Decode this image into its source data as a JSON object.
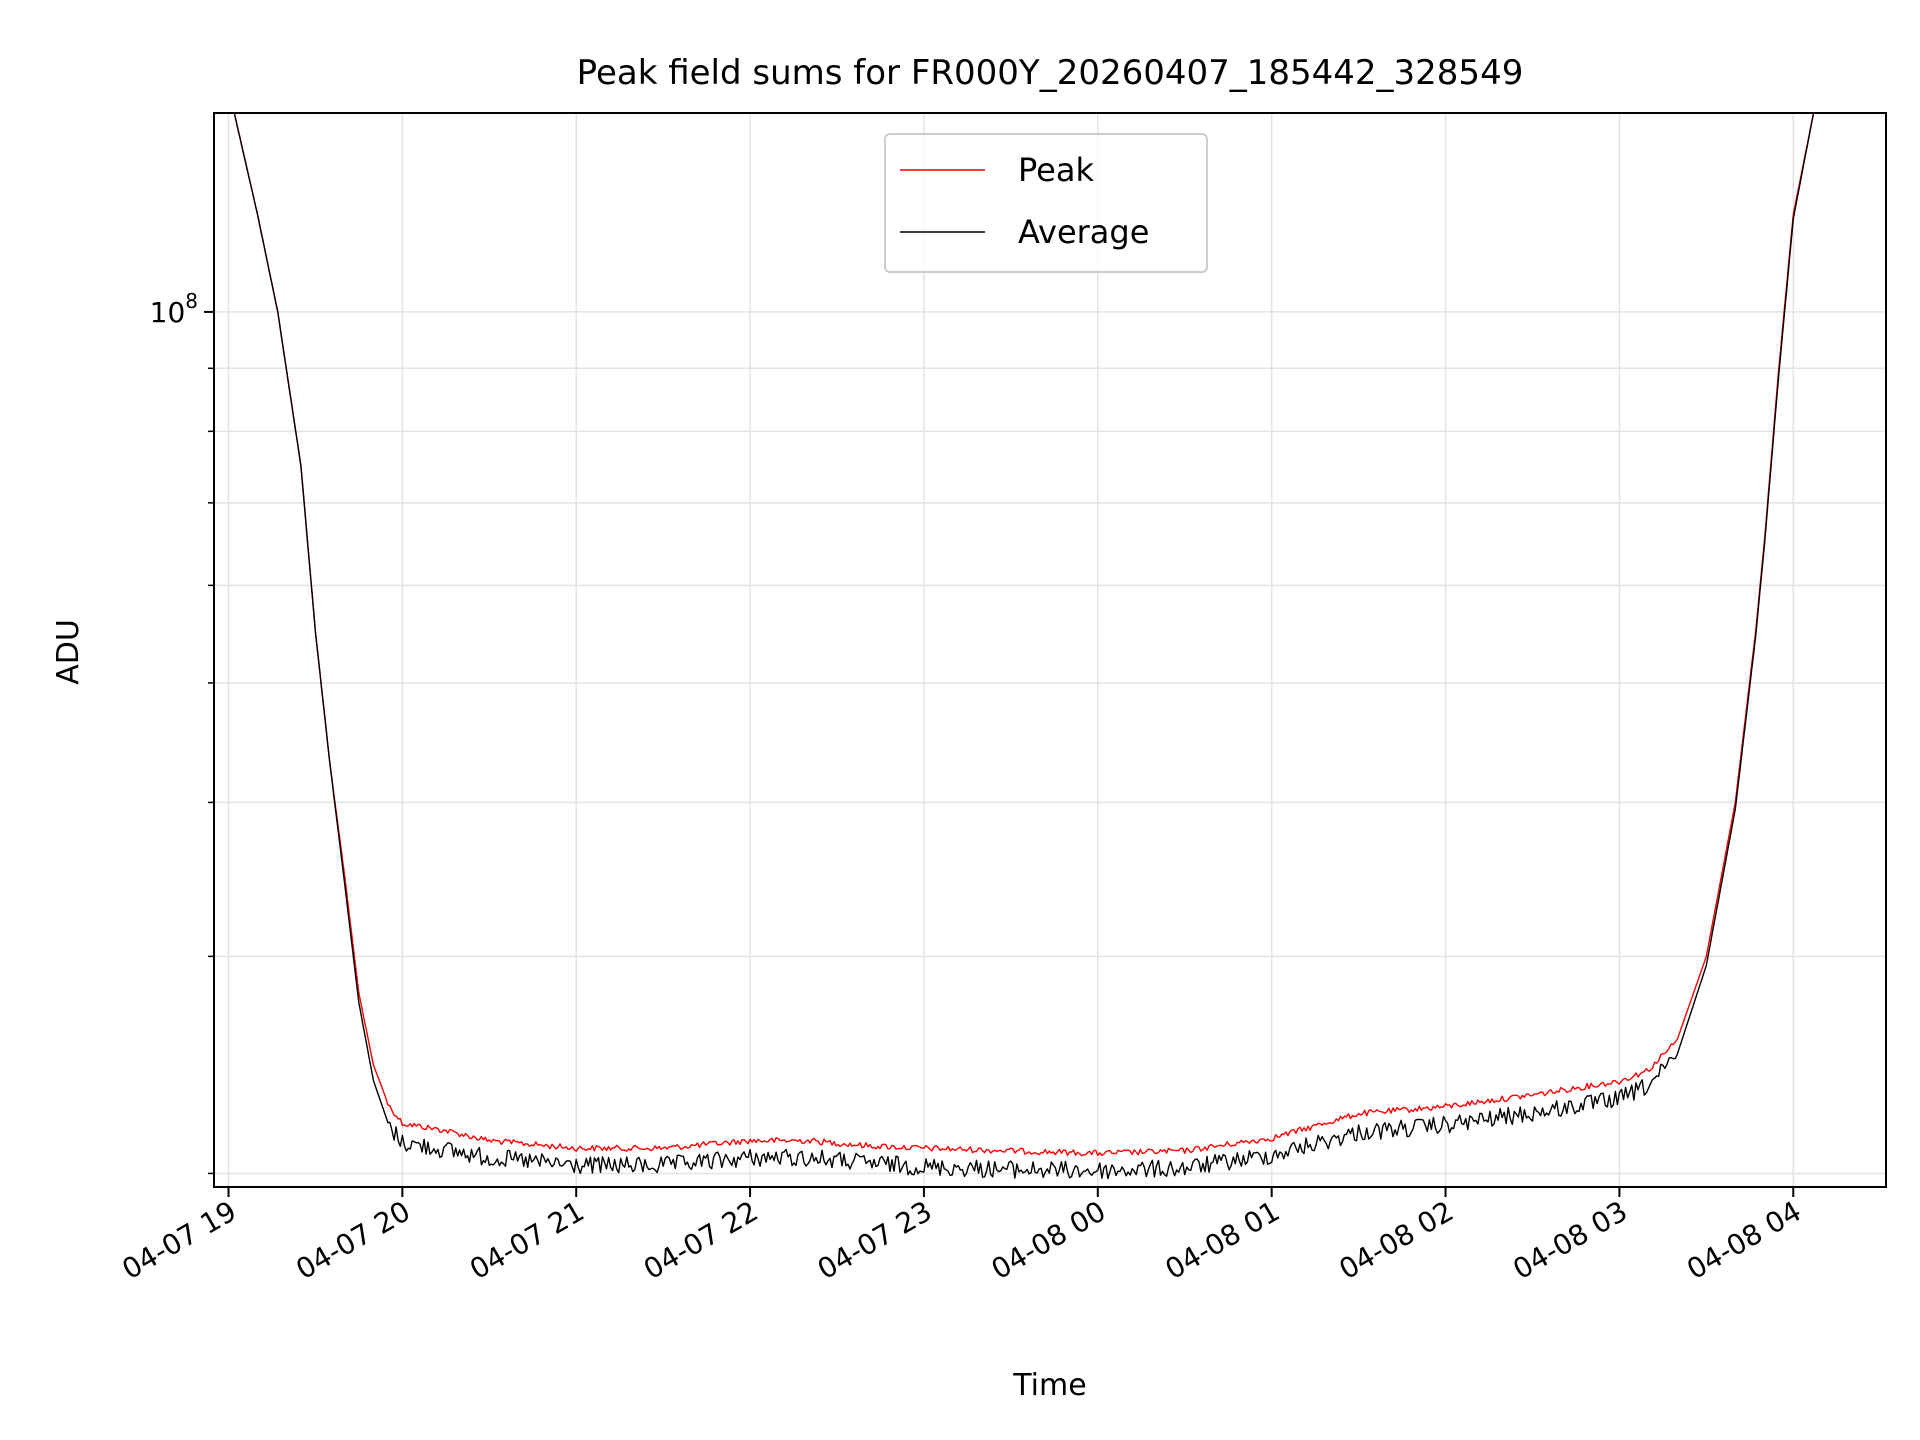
{
  "chart_data": {
    "type": "line",
    "title": "Peak field sums for FR000Y_20260407_185442_328549",
    "xlabel": "Time",
    "ylabel": "ADU",
    "y_scale": "log",
    "ylim": [
      19500000,
      145000000
    ],
    "xlim": [
      "2026-04-07 18:55",
      "2026-04-08 04:32"
    ],
    "grid": true,
    "legend": {
      "placement": "upper-center",
      "entries": [
        {
          "label": "Peak",
          "color": "#ff0000"
        },
        {
          "label": "Average",
          "color": "#000000"
        }
      ]
    },
    "x_ticks": [
      {
        "label": "04-07 19",
        "time": "2026-04-07 19:00"
      },
      {
        "label": "04-07 20",
        "time": "2026-04-07 20:00"
      },
      {
        "label": "04-07 21",
        "time": "2026-04-07 21:00"
      },
      {
        "label": "04-07 22",
        "time": "2026-04-07 22:00"
      },
      {
        "label": "04-07 23",
        "time": "2026-04-07 23:00"
      },
      {
        "label": "04-08 00",
        "time": "2026-04-08 00:00"
      },
      {
        "label": "04-08 01",
        "time": "2026-04-08 01:00"
      },
      {
        "label": "04-08 02",
        "time": "2026-04-08 02:00"
      },
      {
        "label": "04-08 03",
        "time": "2026-04-08 03:00"
      },
      {
        "label": "04-08 04",
        "time": "2026-04-08 04:00"
      }
    ],
    "y_major_tick": {
      "value": 100000000,
      "label_base": "10",
      "label_exp": "8"
    },
    "y_minor_ticks": [
      20000000,
      30000000,
      40000000,
      50000000,
      60000000,
      70000000,
      80000000,
      90000000
    ],
    "series": [
      {
        "name": "Peak",
        "color": "#ff0000",
        "points": [
          [
            "2026-04-07 18:55",
            145000000
          ],
          [
            "2026-04-07 19:02",
            145000000
          ],
          [
            "2026-04-07 19:10",
            120000000
          ],
          [
            "2026-04-07 19:17",
            100000000
          ],
          [
            "2026-04-07 19:25",
            75000000
          ],
          [
            "2026-04-07 19:30",
            55000000
          ],
          [
            "2026-04-07 19:35",
            43000000
          ],
          [
            "2026-04-07 19:40",
            35000000
          ],
          [
            "2026-04-07 19:45",
            28000000
          ],
          [
            "2026-04-07 19:50",
            24500000
          ],
          [
            "2026-04-07 19:55",
            22800000
          ],
          [
            "2026-04-07 20:00",
            22000000
          ],
          [
            "2026-04-07 20:15",
            21700000
          ],
          [
            "2026-04-07 20:30",
            21300000
          ],
          [
            "2026-04-07 21:00",
            21000000
          ],
          [
            "2026-04-07 21:30",
            21000000
          ],
          [
            "2026-04-07 22:00",
            21300000
          ],
          [
            "2026-04-07 22:20",
            21300000
          ],
          [
            "2026-04-07 22:40",
            21100000
          ],
          [
            "2026-04-07 23:00",
            21000000
          ],
          [
            "2026-04-07 23:30",
            20900000
          ],
          [
            "2026-04-08 00:00",
            20800000
          ],
          [
            "2026-04-08 00:30",
            20900000
          ],
          [
            "2026-04-08 01:00",
            21400000
          ],
          [
            "2026-04-08 01:30",
            22400000
          ],
          [
            "2026-04-08 02:00",
            22700000
          ],
          [
            "2026-04-08 02:30",
            23200000
          ],
          [
            "2026-04-08 03:00",
            23800000
          ],
          [
            "2026-04-08 03:10",
            24300000
          ],
          [
            "2026-04-08 03:20",
            25700000
          ],
          [
            "2026-04-08 03:30",
            30000000
          ],
          [
            "2026-04-08 03:40",
            40000000
          ],
          [
            "2026-04-08 03:47",
            55000000
          ],
          [
            "2026-04-08 03:50",
            65000000
          ],
          [
            "2026-04-08 03:55",
            90000000
          ],
          [
            "2026-04-08 04:00",
            120000000
          ],
          [
            "2026-04-08 04:07",
            145000000
          ],
          [
            "2026-04-08 04:32",
            145000000
          ]
        ]
      },
      {
        "name": "Average",
        "color": "#000000",
        "points": [
          [
            "2026-04-07 18:55",
            145000000
          ],
          [
            "2026-04-07 19:02",
            145000000
          ],
          [
            "2026-04-07 19:10",
            120000000
          ],
          [
            "2026-04-07 19:17",
            100000000
          ],
          [
            "2026-04-07 19:25",
            75000000
          ],
          [
            "2026-04-07 19:30",
            55000000
          ],
          [
            "2026-04-07 19:35",
            43000000
          ],
          [
            "2026-04-07 19:40",
            34500000
          ],
          [
            "2026-04-07 19:45",
            27500000
          ],
          [
            "2026-04-07 19:50",
            23800000
          ],
          [
            "2026-04-07 19:55",
            22000000
          ],
          [
            "2026-04-07 20:00",
            21300000
          ],
          [
            "2026-04-07 20:15",
            21000000
          ],
          [
            "2026-04-07 20:30",
            20700000
          ],
          [
            "2026-04-07 21:00",
            20400000
          ],
          [
            "2026-04-07 21:30",
            20400000
          ],
          [
            "2026-04-07 22:00",
            20700000
          ],
          [
            "2026-04-07 22:20",
            20700000
          ],
          [
            "2026-04-07 22:40",
            20500000
          ],
          [
            "2026-04-07 23:00",
            20350000
          ],
          [
            "2026-04-07 23:30",
            20250000
          ],
          [
            "2026-04-08 00:00",
            20200000
          ],
          [
            "2026-04-08 00:30",
            20300000
          ],
          [
            "2026-04-08 01:00",
            20800000
          ],
          [
            "2026-04-08 01:30",
            21700000
          ],
          [
            "2026-04-08 02:00",
            22000000
          ],
          [
            "2026-04-08 02:30",
            22500000
          ],
          [
            "2026-04-08 03:00",
            23100000
          ],
          [
            "2026-04-08 03:10",
            23700000
          ],
          [
            "2026-04-08 03:20",
            25000000
          ],
          [
            "2026-04-08 03:30",
            29500000
          ],
          [
            "2026-04-08 03:40",
            39500000
          ],
          [
            "2026-04-08 03:47",
            54500000
          ],
          [
            "2026-04-08 03:50",
            64500000
          ],
          [
            "2026-04-08 03:55",
            89000000
          ],
          [
            "2026-04-08 04:00",
            119000000
          ],
          [
            "2026-04-08 04:07",
            145000000
          ],
          [
            "2026-04-08 04:32",
            145000000
          ]
        ]
      }
    ]
  }
}
